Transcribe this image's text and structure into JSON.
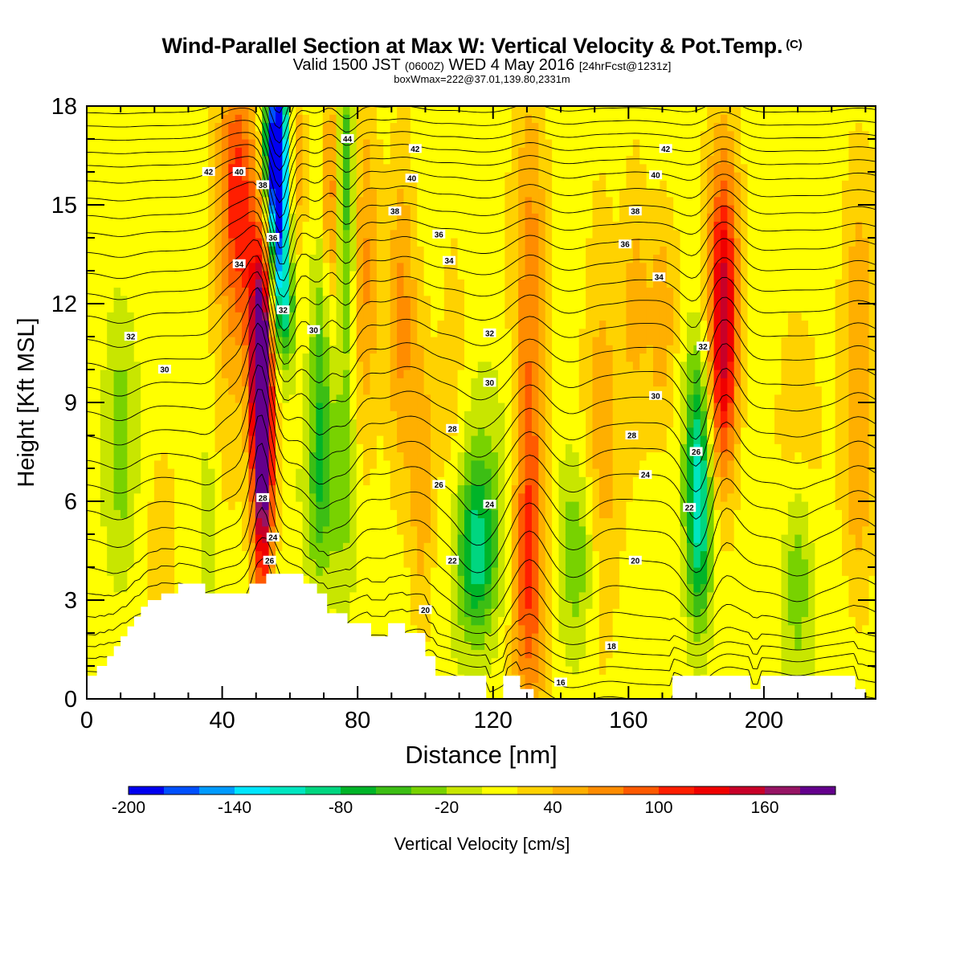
{
  "header": {
    "title": "Wind-Parallel Section at Max W: Vertical Velocity & Pot.Temp.",
    "copyright": "(C)",
    "valid_prefix": "Valid 1500 JST",
    "valid_zulu": "(0600Z)",
    "valid_date": "WED 4 May 2016",
    "forecast": "[24hrFcst@1231z]",
    "box_info": "boxWmax=222@37.01,139.80,2331m"
  },
  "colors": {
    "terrain": "#ffffff",
    "contour": "#000000",
    "frame": "#000000"
  },
  "chart_data": {
    "type": "heatmap",
    "xlabel": "Distance [nm]",
    "ylabel": "Height [Kft MSL]",
    "xlim": [
      0,
      233
    ],
    "ylim": [
      0,
      18
    ],
    "x_ticks": [
      0,
      40,
      80,
      120,
      160,
      200
    ],
    "y_ticks": [
      0,
      3,
      6,
      9,
      12,
      15,
      18
    ],
    "colorbar": {
      "label": "Vertical Velocity [cm/s]",
      "min": -200,
      "max": 200,
      "step": 20,
      "tick_labels": [
        "-200",
        "-140",
        "-80",
        "-20",
        "40",
        "100",
        "160"
      ],
      "colors": [
        "#0000f0",
        "#0050ff",
        "#009bff",
        "#00e6ff",
        "#00e6c0",
        "#00d680",
        "#00b428",
        "#3cbe14",
        "#78d200",
        "#c8e600",
        "#ffff00",
        "#ffd200",
        "#ffaf00",
        "#ff8c00",
        "#ff5a00",
        "#ff1e00",
        "#f00000",
        "#c80028",
        "#961464",
        "#64008c"
      ]
    },
    "terrain_profile": [
      [
        0,
        0.7
      ],
      [
        3,
        0.7
      ],
      [
        3,
        1.0
      ],
      [
        6,
        1.0
      ],
      [
        6,
        1.3
      ],
      [
        8,
        1.3
      ],
      [
        8,
        1.6
      ],
      [
        10,
        1.6
      ],
      [
        10,
        1.9
      ],
      [
        12,
        1.9
      ],
      [
        12,
        2.2
      ],
      [
        14,
        2.2
      ],
      [
        14,
        2.5
      ],
      [
        16,
        2.5
      ],
      [
        16,
        2.8
      ],
      [
        18,
        2.8
      ],
      [
        18,
        3.0
      ],
      [
        22,
        3.0
      ],
      [
        22,
        3.2
      ],
      [
        27,
        3.2
      ],
      [
        27,
        3.5
      ],
      [
        35,
        3.5
      ],
      [
        35,
        3.2
      ],
      [
        48,
        3.2
      ],
      [
        48,
        3.5
      ],
      [
        53,
        3.5
      ],
      [
        53,
        3.8
      ],
      [
        64,
        3.8
      ],
      [
        64,
        3.5
      ],
      [
        68,
        3.5
      ],
      [
        68,
        3.2
      ],
      [
        71,
        3.2
      ],
      [
        71,
        2.6
      ],
      [
        77,
        2.6
      ],
      [
        77,
        2.3
      ],
      [
        84,
        2.3
      ],
      [
        84,
        1.9
      ],
      [
        89,
        1.9
      ],
      [
        89,
        2.3
      ],
      [
        94,
        2.3
      ],
      [
        94,
        2.0
      ],
      [
        100,
        2.0
      ],
      [
        100,
        1.3
      ],
      [
        103,
        1.3
      ],
      [
        103,
        0.7
      ],
      [
        118,
        0.7
      ],
      [
        118,
        0.0
      ],
      [
        123,
        0.0
      ],
      [
        123,
        0.7
      ],
      [
        128,
        0.7
      ],
      [
        128,
        0.3
      ],
      [
        132,
        0.3
      ],
      [
        132,
        0.0
      ],
      [
        173,
        0.0
      ],
      [
        173,
        0.7
      ],
      [
        196,
        0.7
      ],
      [
        196,
        0.3
      ],
      [
        199,
        0.3
      ],
      [
        199,
        0.7
      ],
      [
        227,
        0.7
      ],
      [
        227,
        0.3
      ],
      [
        230,
        0.3
      ],
      [
        230,
        0.0
      ]
    ],
    "w_features": [
      {
        "x": 52,
        "z": 7.5,
        "sx": 2.2,
        "sz": 3.2,
        "w": 200
      },
      {
        "x": 51,
        "z": 10.5,
        "sx": 2.0,
        "sz": 2.0,
        "w": 110
      },
      {
        "x": 44,
        "z": 15.5,
        "sx": 4.0,
        "sz": 2.8,
        "w": 95
      },
      {
        "x": 49,
        "z": 13.0,
        "sx": 4.0,
        "sz": 2.5,
        "w": 45
      },
      {
        "x": 56,
        "z": 16.8,
        "sx": 2.3,
        "sz": 1.8,
        "w": -230
      },
      {
        "x": 57,
        "z": 14.0,
        "sx": 2.0,
        "sz": 2.0,
        "w": -130
      },
      {
        "x": 59,
        "z": 11.8,
        "sx": 2.0,
        "sz": 1.2,
        "w": -60
      },
      {
        "x": 62,
        "z": 16.5,
        "sx": 1.8,
        "sz": 2.2,
        "w": 45
      },
      {
        "x": 69,
        "z": 10.0,
        "sx": 2.0,
        "sz": 3.0,
        "w": -55
      },
      {
        "x": 69,
        "z": 6.0,
        "sx": 3.0,
        "sz": 2.0,
        "w": -40
      },
      {
        "x": 72,
        "z": 15.5,
        "sx": 1.8,
        "sz": 2.5,
        "w": 60
      },
      {
        "x": 77,
        "z": 15.5,
        "sx": 2.0,
        "sz": 3.5,
        "w": -70
      },
      {
        "x": 76,
        "z": 6.5,
        "sx": 2.5,
        "sz": 3.0,
        "w": -30
      },
      {
        "x": 82,
        "z": 13.0,
        "sx": 3.0,
        "sz": 4.0,
        "w": 55
      },
      {
        "x": 93,
        "z": 12.0,
        "sx": 3.0,
        "sz": 3.5,
        "w": 60
      },
      {
        "x": 99,
        "z": 6.5,
        "sx": 2.5,
        "sz": 4.0,
        "w": 40
      },
      {
        "x": 108,
        "z": 10.0,
        "sx": 3.0,
        "sz": 4.0,
        "w": 25
      },
      {
        "x": 115,
        "z": 4.3,
        "sx": 4.0,
        "sz": 1.8,
        "w": -80
      },
      {
        "x": 116,
        "z": 6.0,
        "sx": 6.0,
        "sz": 2.5,
        "w": -30
      },
      {
        "x": 131,
        "z": 8.5,
        "sx": 3.5,
        "sz": 7.0,
        "w": 75
      },
      {
        "x": 130,
        "z": 4.0,
        "sx": 3.0,
        "sz": 2.5,
        "w": 45
      },
      {
        "x": 145,
        "z": 4.5,
        "sx": 4.0,
        "sz": 2.0,
        "w": -50
      },
      {
        "x": 152,
        "z": 8.0,
        "sx": 4.0,
        "sz": 6.0,
        "w": 40
      },
      {
        "x": 162,
        "z": 12.5,
        "sx": 3.0,
        "sz": 3.0,
        "w": 40
      },
      {
        "x": 170,
        "z": 11.5,
        "sx": 3.0,
        "sz": 2.5,
        "w": 45
      },
      {
        "x": 181,
        "z": 5.5,
        "sx": 2.6,
        "sz": 2.5,
        "w": -95
      },
      {
        "x": 180,
        "z": 8.0,
        "sx": 2.5,
        "sz": 2.5,
        "w": -45
      },
      {
        "x": 188,
        "z": 10.5,
        "sx": 3.0,
        "sz": 3.0,
        "w": 110
      },
      {
        "x": 188,
        "z": 13.5,
        "sx": 3.5,
        "sz": 3.5,
        "w": 55
      },
      {
        "x": 210,
        "z": 4.5,
        "sx": 3.0,
        "sz": 2.5,
        "w": -55
      },
      {
        "x": 210,
        "z": 8.0,
        "sx": 4.0,
        "sz": 3.0,
        "w": 35
      },
      {
        "x": 228,
        "z": 11.0,
        "sx": 4.0,
        "sz": 4.0,
        "w": 45
      },
      {
        "x": 228,
        "z": 6.0,
        "sx": 3.0,
        "sz": 2.5,
        "w": 25
      },
      {
        "x": 10,
        "z": 8.0,
        "sx": 3.0,
        "sz": 3.0,
        "w": -35
      },
      {
        "x": 22,
        "z": 5.0,
        "sx": 4.0,
        "sz": 2.5,
        "w": 25
      },
      {
        "x": 36,
        "z": 6.5,
        "sx": 2.0,
        "sz": 3.0,
        "w": -25
      },
      {
        "x": 40,
        "z": 10.0,
        "sx": 5.0,
        "sz": 3.0,
        "w": 20
      }
    ],
    "theta_profile": {
      "levels_kft": [
        0,
        2,
        4,
        6,
        8,
        10,
        12,
        14,
        16,
        18
      ],
      "theta": [
        15.5,
        19.5,
        22,
        24.3,
        27,
        29.7,
        32.5,
        35.7,
        39.5,
        44.5
      ]
    },
    "theta_contour_step": 1,
    "contour_labels": [
      {
        "x": 36,
        "z": 16.0,
        "text": "42"
      },
      {
        "x": 45,
        "z": 16.0,
        "text": "40"
      },
      {
        "x": 52,
        "z": 15.6,
        "text": "38"
      },
      {
        "x": 55,
        "z": 14.0,
        "text": "36"
      },
      {
        "x": 45,
        "z": 13.2,
        "text": "34"
      },
      {
        "x": 58,
        "z": 11.8,
        "text": "32"
      },
      {
        "x": 67,
        "z": 11.2,
        "text": "30"
      },
      {
        "x": 77,
        "z": 17.0,
        "text": "44"
      },
      {
        "x": 97,
        "z": 16.7,
        "text": "42"
      },
      {
        "x": 96,
        "z": 15.8,
        "text": "40"
      },
      {
        "x": 91,
        "z": 14.8,
        "text": "38"
      },
      {
        "x": 104,
        "z": 14.1,
        "text": "36"
      },
      {
        "x": 107,
        "z": 13.3,
        "text": "34"
      },
      {
        "x": 119,
        "z": 11.1,
        "text": "32"
      },
      {
        "x": 119,
        "z": 9.6,
        "text": "30"
      },
      {
        "x": 108,
        "z": 8.2,
        "text": "28"
      },
      {
        "x": 104,
        "z": 6.5,
        "text": "26"
      },
      {
        "x": 119,
        "z": 5.9,
        "text": "24"
      },
      {
        "x": 108,
        "z": 4.2,
        "text": "22"
      },
      {
        "x": 100,
        "z": 2.7,
        "text": "20"
      },
      {
        "x": 171,
        "z": 16.7,
        "text": "42"
      },
      {
        "x": 168,
        "z": 15.9,
        "text": "40"
      },
      {
        "x": 162,
        "z": 14.8,
        "text": "38"
      },
      {
        "x": 159,
        "z": 13.8,
        "text": "36"
      },
      {
        "x": 169,
        "z": 12.8,
        "text": "34"
      },
      {
        "x": 182,
        "z": 10.7,
        "text": "32"
      },
      {
        "x": 168,
        "z": 9.2,
        "text": "30"
      },
      {
        "x": 161,
        "z": 8.0,
        "text": "28"
      },
      {
        "x": 165,
        "z": 6.8,
        "text": "24"
      },
      {
        "x": 180,
        "z": 7.5,
        "text": "26"
      },
      {
        "x": 178,
        "z": 5.8,
        "text": "22"
      },
      {
        "x": 162,
        "z": 4.2,
        "text": "20"
      },
      {
        "x": 155,
        "z": 1.6,
        "text": "18"
      },
      {
        "x": 140,
        "z": 0.5,
        "text": "16"
      },
      {
        "x": 13,
        "z": 11.0,
        "text": "32"
      },
      {
        "x": 23,
        "z": 10.0,
        "text": "30"
      },
      {
        "x": 52,
        "z": 6.1,
        "text": "28"
      },
      {
        "x": 55,
        "z": 4.9,
        "text": "24"
      },
      {
        "x": 54,
        "z": 4.2,
        "text": "26"
      }
    ]
  }
}
